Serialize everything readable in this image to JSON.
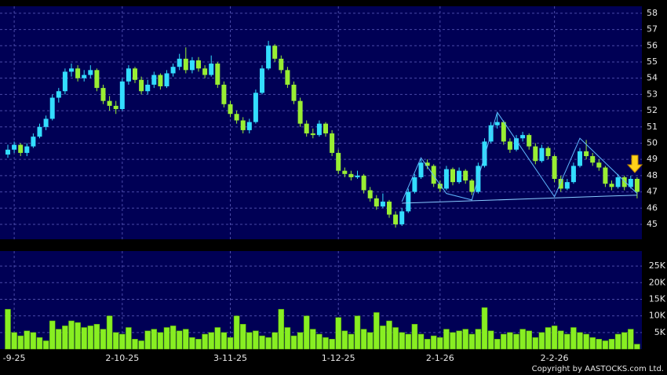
{
  "chart_data": {
    "type": "candlestick",
    "categories": [
      null,
      "-9-25",
      null,
      null,
      null,
      null,
      null,
      null,
      null,
      null,
      null,
      null,
      null,
      null,
      null,
      null,
      null,
      null,
      "2-10-25",
      null,
      null,
      null,
      null,
      null,
      null,
      null,
      null,
      null,
      null,
      null,
      null,
      null,
      null,
      null,
      null,
      "3-11-25",
      null,
      null,
      null,
      null,
      null,
      null,
      null,
      null,
      null,
      null,
      null,
      null,
      null,
      null,
      null,
      null,
      "1-12-25",
      null,
      null,
      null,
      null,
      null,
      null,
      null,
      null,
      null,
      null,
      null,
      null,
      null,
      null,
      null,
      "2-1-26",
      null,
      null,
      null,
      null,
      null,
      null,
      null,
      null,
      null,
      null,
      null,
      null,
      null,
      null,
      null,
      null,
      null,
      "2-2-26",
      null,
      null,
      null,
      null,
      null,
      null,
      null,
      null,
      null,
      null,
      null,
      null,
      null
    ],
    "ohlc": [
      [
        49.3,
        49.9,
        49.1,
        49.6
      ],
      [
        49.6,
        50.1,
        49.4,
        49.9
      ],
      [
        49.9,
        50.0,
        49.2,
        49.4
      ],
      [
        49.4,
        50.0,
        49.2,
        49.8
      ],
      [
        49.8,
        50.6,
        49.7,
        50.4
      ],
      [
        50.4,
        51.2,
        50.3,
        51.0
      ],
      [
        51.0,
        51.7,
        50.8,
        51.5
      ],
      [
        51.5,
        53.0,
        51.4,
        52.8
      ],
      [
        52.8,
        53.4,
        52.5,
        53.2
      ],
      [
        53.2,
        54.6,
        53.0,
        54.4
      ],
      [
        54.4,
        54.9,
        54.1,
        54.6
      ],
      [
        54.6,
        54.8,
        53.8,
        54.0
      ],
      [
        54.0,
        54.5,
        53.8,
        54.2
      ],
      [
        54.2,
        54.8,
        54.0,
        54.5
      ],
      [
        54.5,
        54.6,
        53.2,
        53.4
      ],
      [
        53.4,
        53.6,
        52.4,
        52.6
      ],
      [
        52.6,
        52.9,
        52.0,
        52.3
      ],
      [
        52.3,
        52.6,
        51.8,
        52.1
      ],
      [
        52.1,
        54.0,
        52.0,
        53.8
      ],
      [
        53.8,
        54.8,
        53.6,
        54.6
      ],
      [
        54.6,
        54.7,
        53.7,
        53.9
      ],
      [
        53.9,
        54.1,
        53.0,
        53.2
      ],
      [
        53.2,
        53.9,
        53.0,
        53.6
      ],
      [
        53.6,
        54.4,
        53.4,
        54.2
      ],
      [
        54.2,
        54.3,
        53.3,
        53.5
      ],
      [
        53.5,
        54.5,
        53.4,
        54.3
      ],
      [
        54.3,
        54.9,
        54.1,
        54.7
      ],
      [
        54.7,
        55.5,
        54.5,
        55.2
      ],
      [
        55.2,
        55.9,
        54.3,
        54.5
      ],
      [
        54.5,
        55.3,
        54.3,
        55.1
      ],
      [
        55.1,
        55.3,
        54.4,
        54.6
      ],
      [
        54.6,
        54.8,
        54.0,
        54.2
      ],
      [
        54.2,
        55.4,
        54.1,
        54.9
      ],
      [
        54.9,
        55.0,
        53.4,
        53.6
      ],
      [
        53.6,
        53.8,
        52.2,
        52.4
      ],
      [
        52.4,
        52.6,
        51.6,
        51.8
      ],
      [
        51.8,
        52.0,
        51.2,
        51.4
      ],
      [
        51.4,
        51.6,
        50.6,
        50.8
      ],
      [
        50.8,
        51.5,
        50.6,
        51.3
      ],
      [
        51.3,
        53.3,
        51.2,
        53.1
      ],
      [
        53.1,
        54.8,
        53.0,
        54.6
      ],
      [
        54.6,
        56.3,
        54.5,
        56.0
      ],
      [
        56.0,
        56.1,
        55.0,
        55.2
      ],
      [
        55.2,
        55.4,
        54.3,
        54.5
      ],
      [
        54.5,
        54.7,
        53.4,
        53.6
      ],
      [
        53.6,
        53.8,
        52.4,
        52.6
      ],
      [
        52.6,
        52.8,
        51.0,
        51.2
      ],
      [
        51.2,
        51.4,
        50.4,
        50.6
      ],
      [
        50.6,
        50.9,
        50.3,
        50.5
      ],
      [
        50.5,
        51.4,
        50.4,
        51.2
      ],
      [
        51.2,
        51.3,
        50.4,
        50.6
      ],
      [
        50.6,
        50.8,
        49.2,
        49.4
      ],
      [
        49.4,
        49.6,
        48.1,
        48.3
      ],
      [
        48.3,
        48.5,
        47.9,
        48.1
      ],
      [
        48.1,
        48.3,
        47.7,
        47.9
      ],
      [
        47.9,
        48.3,
        47.8,
        48.0
      ],
      [
        48.0,
        48.1,
        46.9,
        47.1
      ],
      [
        47.1,
        47.3,
        46.4,
        46.6
      ],
      [
        46.6,
        46.8,
        45.9,
        46.1
      ],
      [
        46.1,
        46.9,
        46.0,
        46.4
      ],
      [
        46.4,
        46.5,
        45.4,
        45.6
      ],
      [
        45.6,
        45.8,
        44.8,
        45.0
      ],
      [
        45.0,
        46.0,
        44.9,
        45.8
      ],
      [
        45.8,
        47.2,
        45.7,
        47.0
      ],
      [
        47.0,
        48.1,
        46.9,
        47.9
      ],
      [
        47.9,
        49.0,
        47.8,
        48.8
      ],
      [
        48.8,
        49.0,
        48.4,
        48.6
      ],
      [
        48.6,
        48.7,
        47.3,
        47.5
      ],
      [
        47.5,
        47.7,
        47.0,
        47.2
      ],
      [
        47.2,
        48.6,
        47.1,
        48.4
      ],
      [
        48.4,
        48.5,
        47.4,
        47.6
      ],
      [
        47.6,
        48.5,
        47.5,
        48.3
      ],
      [
        48.3,
        48.4,
        47.5,
        47.7
      ],
      [
        47.7,
        47.8,
        46.8,
        47.0
      ],
      [
        47.0,
        48.8,
        46.9,
        48.6
      ],
      [
        48.6,
        50.3,
        48.5,
        50.1
      ],
      [
        50.1,
        51.3,
        50.0,
        51.1
      ],
      [
        51.1,
        51.8,
        50.9,
        51.3
      ],
      [
        51.3,
        51.4,
        49.9,
        50.1
      ],
      [
        50.1,
        50.3,
        49.4,
        49.6
      ],
      [
        49.6,
        50.5,
        49.5,
        50.3
      ],
      [
        50.3,
        50.7,
        50.1,
        50.5
      ],
      [
        50.5,
        50.6,
        49.6,
        49.8
      ],
      [
        49.8,
        50.0,
        48.7,
        48.9
      ],
      [
        48.9,
        49.9,
        48.8,
        49.7
      ],
      [
        49.7,
        49.8,
        49.0,
        49.2
      ],
      [
        49.2,
        49.3,
        47.6,
        47.8
      ],
      [
        47.8,
        48.0,
        47.0,
        47.2
      ],
      [
        47.2,
        47.8,
        47.1,
        47.6
      ],
      [
        47.6,
        48.8,
        47.5,
        48.6
      ],
      [
        48.6,
        49.7,
        48.5,
        49.5
      ],
      [
        49.5,
        50.2,
        49.0,
        49.2
      ],
      [
        49.2,
        49.4,
        48.6,
        48.8
      ],
      [
        48.8,
        49.0,
        48.3,
        48.5
      ],
      [
        48.5,
        48.6,
        47.3,
        47.5
      ],
      [
        47.5,
        47.7,
        47.1,
        47.3
      ],
      [
        47.3,
        48.1,
        47.2,
        47.9
      ],
      [
        47.9,
        48.0,
        47.1,
        47.3
      ],
      [
        47.3,
        48.0,
        47.2,
        47.8
      ],
      [
        47.8,
        47.9,
        46.6,
        47.0
      ]
    ],
    "volume": [
      12000,
      5000,
      4000,
      5500,
      5000,
      3500,
      2500,
      8500,
      6000,
      7000,
      8500,
      8000,
      6500,
      7000,
      7500,
      6000,
      10000,
      5000,
      4500,
      6500,
      3000,
      2500,
      5500,
      6000,
      5000,
      6500,
      7000,
      5500,
      6000,
      3500,
      3000,
      4500,
      5000,
      6500,
      5000,
      3500,
      10000,
      7500,
      5000,
      5500,
      4000,
      3500,
      5000,
      12000,
      6500,
      4000,
      5000,
      10000,
      6000,
      4500,
      3500,
      3000,
      9500,
      5500,
      4500,
      10000,
      6000,
      5000,
      11000,
      7000,
      8500,
      6500,
      5000,
      4500,
      7500,
      4500,
      3000,
      4000,
      3500,
      6000,
      5000,
      5500,
      6000,
      4500,
      6000,
      12500,
      5500,
      3000,
      4500,
      5000,
      4500,
      6000,
      5500,
      3500,
      5000,
      6500,
      7000,
      5500,
      4500,
      6500,
      5000,
      4500,
      3500,
      3000,
      2500,
      3000,
      4500,
      5000,
      6000,
      1500
    ],
    "up_color": "#33ddff",
    "down_color": "#99ee33",
    "volume_color": "#88ee22",
    "grid": true,
    "ylim": [
      44.08,
      58.43
    ],
    "yticks": [
      45,
      46,
      47,
      48,
      49,
      50,
      51,
      52,
      53,
      54,
      55,
      56,
      57,
      58
    ],
    "volume_ylim": [
      0,
      29500
    ],
    "volume_yticks": [
      {
        "value": 5000,
        "label": "5K"
      },
      {
        "value": 10000,
        "label": "10K"
      },
      {
        "value": 15000,
        "label": "15K"
      },
      {
        "value": 20000,
        "label": "20K"
      },
      {
        "value": 25000,
        "label": "25K"
      }
    ],
    "trendlines": [
      {
        "color": "#88ccff",
        "points": [
          [
            62,
            46.3
          ],
          [
            99,
            46.8
          ]
        ]
      },
      {
        "color": "#5fb8ff",
        "points": [
          [
            62,
            46.4
          ],
          [
            65,
            49.1
          ],
          [
            69,
            46.9
          ],
          [
            73,
            46.5
          ],
          [
            77,
            51.9
          ],
          [
            86,
            46.7
          ],
          [
            90,
            50.3
          ],
          [
            99,
            46.9
          ]
        ]
      }
    ],
    "source": "Copyright by AASTOCKS.com Ltd."
  }
}
